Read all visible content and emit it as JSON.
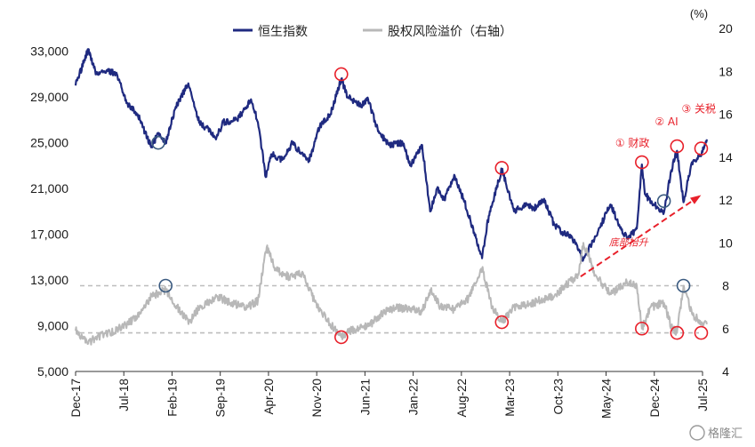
{
  "chart_data": {
    "type": "line",
    "title": "",
    "legend": [
      {
        "name": "恒生指数",
        "color": "#1f2a80",
        "axis": "left"
      },
      {
        "name": "股权风险溢价（右轴）",
        "color": "#b8b8b8",
        "axis": "right"
      }
    ],
    "legend_position": "top-center",
    "right_unit": "(%)",
    "x_range": [
      "2017-12",
      "2025-07"
    ],
    "x_ticks": [
      "Dec-17",
      "Jul-18",
      "Feb-19",
      "Sep-19",
      "Apr-20",
      "Nov-20",
      "Jun-21",
      "Jan-22",
      "Aug-22",
      "Mar-23",
      "Oct-23",
      "May-24",
      "Dec-24",
      "Jul-25"
    ],
    "y_left": {
      "range": [
        5000,
        35000
      ],
      "ticks": [
        "5,000",
        "9,000",
        "13,000",
        "17,000",
        "21,000",
        "25,000",
        "29,000",
        "33,000"
      ]
    },
    "y_right": {
      "range": [
        4,
        20
      ],
      "ticks": [
        "4",
        "6",
        "8",
        "10",
        "12",
        "14",
        "16",
        "18",
        "20"
      ]
    },
    "grid": false,
    "series": [
      {
        "name": "恒生指数",
        "axis": "left",
        "points": [
          [
            "2017-12-01",
            30000
          ],
          [
            "2018-01-26",
            33200
          ],
          [
            "2018-03-01",
            31000
          ],
          [
            "2018-04-15",
            31300
          ],
          [
            "2018-06-01",
            31000
          ],
          [
            "2018-07-15",
            28500
          ],
          [
            "2018-09-01",
            27500
          ],
          [
            "2018-10-30",
            24600
          ],
          [
            "2018-12-01",
            25800
          ],
          [
            "2019-01-03",
            25000
          ],
          [
            "2019-02-15",
            28000
          ],
          [
            "2019-04-12",
            30200
          ],
          [
            "2019-05-15",
            27800
          ],
          [
            "2019-06-01",
            26800
          ],
          [
            "2019-08-15",
            25500
          ],
          [
            "2019-09-15",
            26800
          ],
          [
            "2019-11-15",
            27000
          ],
          [
            "2020-01-15",
            28800
          ],
          [
            "2020-02-15",
            26800
          ],
          [
            "2020-03-19",
            22000
          ],
          [
            "2020-04-15",
            24000
          ],
          [
            "2020-06-01",
            23500
          ],
          [
            "2020-07-15",
            25000
          ],
          [
            "2020-09-25",
            23300
          ],
          [
            "2020-11-15",
            26500
          ],
          [
            "2021-01-01",
            27500
          ],
          [
            "2021-02-18",
            30600
          ],
          [
            "2021-03-15",
            29000
          ],
          [
            "2021-05-15",
            28300
          ],
          [
            "2021-06-15",
            28800
          ],
          [
            "2021-07-28",
            26000
          ],
          [
            "2021-09-15",
            24800
          ],
          [
            "2021-11-15",
            25000
          ],
          [
            "2021-12-20",
            23000
          ],
          [
            "2022-02-10",
            24800
          ],
          [
            "2022-03-15",
            19000
          ],
          [
            "2022-04-15",
            21000
          ],
          [
            "2022-05-15",
            20000
          ],
          [
            "2022-06-30",
            22200
          ],
          [
            "2022-08-15",
            19800
          ],
          [
            "2022-10-31",
            14900
          ],
          [
            "2022-11-30",
            18600
          ],
          [
            "2023-01-27",
            22700
          ],
          [
            "2023-03-20",
            19000
          ],
          [
            "2023-05-15",
            19600
          ],
          [
            "2023-06-15",
            19200
          ],
          [
            "2023-07-31",
            20100
          ],
          [
            "2023-09-15",
            17800
          ],
          [
            "2023-10-20",
            17200
          ],
          [
            "2023-12-01",
            16800
          ],
          [
            "2024-01-22",
            14800
          ],
          [
            "2024-03-15",
            16800
          ],
          [
            "2024-05-20",
            19600
          ],
          [
            "2024-06-30",
            17700
          ],
          [
            "2024-08-05",
            16600
          ],
          [
            "2024-09-15",
            17500
          ],
          [
            "2024-10-07",
            23100
          ],
          [
            "2024-10-20",
            20500
          ],
          [
            "2024-12-01",
            19600
          ],
          [
            "2025-01-13",
            18900
          ],
          [
            "2025-02-15",
            22600
          ],
          [
            "2025-03-10",
            24300
          ],
          [
            "2025-04-08",
            19800
          ],
          [
            "2025-05-15",
            23300
          ],
          [
            "2025-06-15",
            23800
          ],
          [
            "2025-07-01",
            24200
          ],
          [
            "2025-07-20",
            25300
          ]
        ]
      },
      {
        "name": "股权风险溢价（右轴）",
        "axis": "right",
        "points": [
          [
            "2017-12-01",
            5.9
          ],
          [
            "2018-01-26",
            5.3
          ],
          [
            "2018-03-01",
            5.6
          ],
          [
            "2018-05-01",
            5.8
          ],
          [
            "2018-07-15",
            6.2
          ],
          [
            "2018-09-01",
            6.6
          ],
          [
            "2018-11-01",
            7.5
          ],
          [
            "2019-01-03",
            7.8
          ],
          [
            "2019-03-01",
            6.9
          ],
          [
            "2019-04-15",
            6.3
          ],
          [
            "2019-06-01",
            7.0
          ],
          [
            "2019-08-15",
            7.5
          ],
          [
            "2019-10-15",
            7.2
          ],
          [
            "2019-12-31",
            7.0
          ],
          [
            "2020-02-15",
            7.3
          ],
          [
            "2020-03-23",
            9.8
          ],
          [
            "2020-05-01",
            8.8
          ],
          [
            "2020-07-01",
            8.4
          ],
          [
            "2020-09-01",
            8.6
          ],
          [
            "2020-10-20",
            7.3
          ],
          [
            "2020-12-15",
            6.4
          ],
          [
            "2021-02-18",
            5.6
          ],
          [
            "2021-04-15",
            6.0
          ],
          [
            "2021-06-15",
            6.1
          ],
          [
            "2021-08-15",
            6.7
          ],
          [
            "2021-10-15",
            7.0
          ],
          [
            "2021-12-15",
            6.9
          ],
          [
            "2022-02-10",
            6.8
          ],
          [
            "2022-03-15",
            7.8
          ],
          [
            "2022-05-01",
            7.0
          ],
          [
            "2022-06-30",
            6.9
          ],
          [
            "2022-09-01",
            7.4
          ],
          [
            "2022-10-31",
            8.8
          ],
          [
            "2022-12-15",
            7.0
          ],
          [
            "2023-01-27",
            6.3
          ],
          [
            "2023-03-20",
            7.0
          ],
          [
            "2023-05-15",
            7.1
          ],
          [
            "2023-07-31",
            7.4
          ],
          [
            "2023-09-15",
            7.5
          ],
          [
            "2023-10-31",
            8.0
          ],
          [
            "2023-12-31",
            8.5
          ],
          [
            "2024-01-22",
            10.0
          ],
          [
            "2024-03-15",
            8.5
          ],
          [
            "2024-05-20",
            7.6
          ],
          [
            "2024-07-31",
            8.2
          ],
          [
            "2024-09-15",
            8.0
          ],
          [
            "2024-10-07",
            6.0
          ],
          [
            "2024-11-15",
            7.0
          ],
          [
            "2025-01-13",
            7.2
          ],
          [
            "2025-02-15",
            6.1
          ],
          [
            "2025-03-10",
            5.8
          ],
          [
            "2025-04-08",
            8.0
          ],
          [
            "2025-05-15",
            6.7
          ],
          [
            "2025-06-15",
            6.4
          ],
          [
            "2025-07-20",
            6.2
          ]
        ]
      }
    ],
    "reference_lines": [
      {
        "axis": "right",
        "value": 8.0,
        "style": "dashed",
        "color": "#bdbdbd"
      },
      {
        "axis": "right",
        "value": 5.8,
        "style": "dashed",
        "color": "#bdbdbd"
      }
    ],
    "markers": [
      {
        "series": "恒生指数",
        "date": "2018-12-01",
        "value": 25000,
        "color": "#3a5a80"
      },
      {
        "series": "恒生指数",
        "date": "2021-02-18",
        "value": 31000,
        "color": "#e8202a"
      },
      {
        "series": "恒生指数",
        "date": "2023-01-27",
        "value": 22800,
        "color": "#e8202a"
      },
      {
        "series": "恒生指数",
        "date": "2024-10-07",
        "value": 23300,
        "color": "#e8202a"
      },
      {
        "series": "恒生指数",
        "date": "2025-01-13",
        "value": 19900,
        "color": "#3a5a80"
      },
      {
        "series": "恒生指数",
        "date": "2025-03-10",
        "value": 24700,
        "color": "#e8202a"
      },
      {
        "series": "恒生指数",
        "date": "2025-06-25",
        "value": 24500,
        "color": "#e8202a"
      },
      {
        "series": "股权风险溢价（右轴）",
        "date": "2019-01-03",
        "value": 8.0,
        "color": "#3a5a80"
      },
      {
        "series": "股权风险溢价（右轴）",
        "date": "2021-02-18",
        "value": 5.6,
        "color": "#e8202a"
      },
      {
        "series": "股权风险溢价（右轴）",
        "date": "2023-01-27",
        "value": 6.3,
        "color": "#e8202a"
      },
      {
        "series": "股权风险溢价（右轴）",
        "date": "2024-10-07",
        "value": 6.0,
        "color": "#e8202a"
      },
      {
        "series": "股权风险溢价（右轴）",
        "date": "2025-03-10",
        "value": 5.8,
        "color": "#e8202a"
      },
      {
        "series": "股权风险溢价（右轴）",
        "date": "2025-04-08",
        "value": 8.0,
        "color": "#3a5a80"
      },
      {
        "series": "股权风险溢价（右轴）",
        "date": "2025-06-25",
        "value": 5.8,
        "color": "#e8202a"
      }
    ],
    "annotations": [
      {
        "text": "① 财政",
        "anchor_date": "2024-10-07",
        "anchor_value": 24200
      },
      {
        "text": "② AI",
        "anchor_date": "2025-03-10",
        "anchor_value": 25900
      },
      {
        "text": "③ 关税",
        "anchor_date": "2025-06-25",
        "anchor_value": 26800
      },
      {
        "text": "底部抬升",
        "anchor_date": "2024-06-30",
        "anchor_value": 16000
      }
    ],
    "trend_arrow": {
      "from": [
        "2024-01-10",
        13300
      ],
      "to": [
        "2025-06-15",
        20300
      ],
      "color": "#e8202a",
      "style": "dashed"
    }
  },
  "watermark": "格隆汇"
}
